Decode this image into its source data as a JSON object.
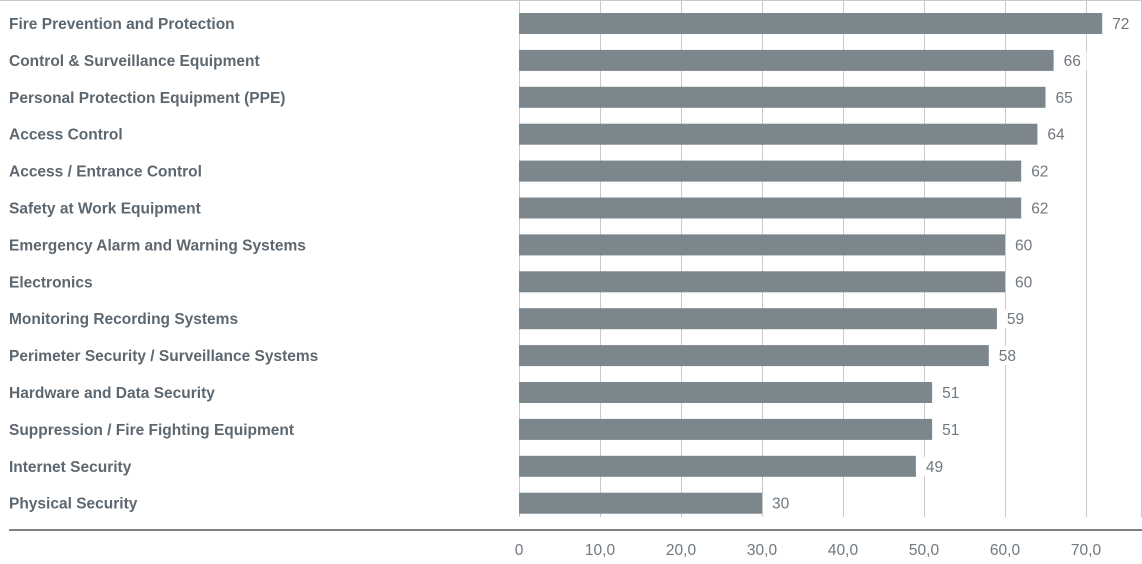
{
  "chart_data": {
    "type": "bar",
    "orientation": "horizontal",
    "categories": [
      "Fire Prevention and Protection",
      "Control & Surveillance Equipment",
      "Personal Protection Equipment (PPE)",
      "Access Control",
      "Access / Entrance Control",
      "Safety at Work Equipment",
      "Emergency Alarm and Warning Systems",
      "Electronics",
      "Monitoring Recording Systems",
      "Perimeter Security / Surveillance Systems",
      "Hardware and Data Security",
      "Suppression / Fire Fighting Equipment",
      "Internet Security",
      "Physical Security"
    ],
    "values": [
      72,
      66,
      65,
      64,
      62,
      62,
      60,
      60,
      59,
      58,
      51,
      51,
      49,
      30
    ],
    "value_labels": [
      "72",
      "66",
      "65",
      "64",
      "62",
      "62",
      "60",
      "60",
      "59",
      "58",
      "51",
      "51",
      "49",
      "30"
    ],
    "x_ticks": [
      0,
      10,
      20,
      30,
      40,
      50,
      60,
      70
    ],
    "x_tick_labels": [
      "0",
      "10,0",
      "20,0",
      "30,0",
      "40,0",
      "50,0",
      "60,0",
      "70,0"
    ],
    "xlim": [
      0,
      76
    ],
    "grid": "vertical",
    "bar_color": "#7b868d",
    "grid_color": "#c9c9c9",
    "axis_color": "#7f7f7f",
    "title": "",
    "xlabel": "",
    "ylabel": ""
  }
}
